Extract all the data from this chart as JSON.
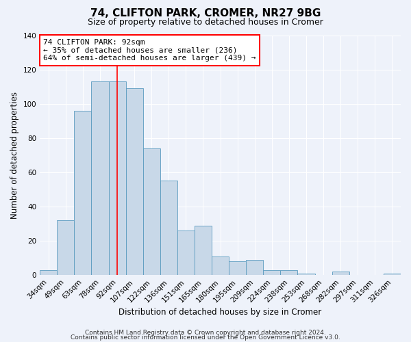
{
  "title": "74, CLIFTON PARK, CROMER, NR27 9BG",
  "subtitle": "Size of property relative to detached houses in Cromer",
  "xlabel": "Distribution of detached houses by size in Cromer",
  "ylabel": "Number of detached properties",
  "categories": [
    "34sqm",
    "49sqm",
    "63sqm",
    "78sqm",
    "92sqm",
    "107sqm",
    "122sqm",
    "136sqm",
    "151sqm",
    "165sqm",
    "180sqm",
    "195sqm",
    "209sqm",
    "224sqm",
    "238sqm",
    "253sqm",
    "268sqm",
    "282sqm",
    "297sqm",
    "311sqm",
    "326sqm"
  ],
  "values": [
    3,
    32,
    96,
    113,
    113,
    109,
    74,
    55,
    26,
    29,
    11,
    8,
    9,
    3,
    3,
    1,
    0,
    2,
    0,
    0,
    1
  ],
  "bar_color": "#c8d8e8",
  "bar_edge_color": "#5a9abf",
  "redline_index": 4,
  "annotation_title": "74 CLIFTON PARK: 92sqm",
  "annotation_line1": "← 35% of detached houses are smaller (236)",
  "annotation_line2": "64% of semi-detached houses are larger (439) →",
  "ylim": [
    0,
    140
  ],
  "yticks": [
    0,
    20,
    40,
    60,
    80,
    100,
    120,
    140
  ],
  "footer1": "Contains HM Land Registry data © Crown copyright and database right 2024.",
  "footer2": "Contains public sector information licensed under the Open Government Licence v3.0.",
  "background_color": "#eef2fa",
  "grid_color": "#ffffff",
  "title_fontsize": 11,
  "subtitle_fontsize": 9,
  "axis_label_fontsize": 8.5,
  "tick_fontsize": 7.5,
  "annotation_fontsize": 8,
  "footer_fontsize": 6.5
}
